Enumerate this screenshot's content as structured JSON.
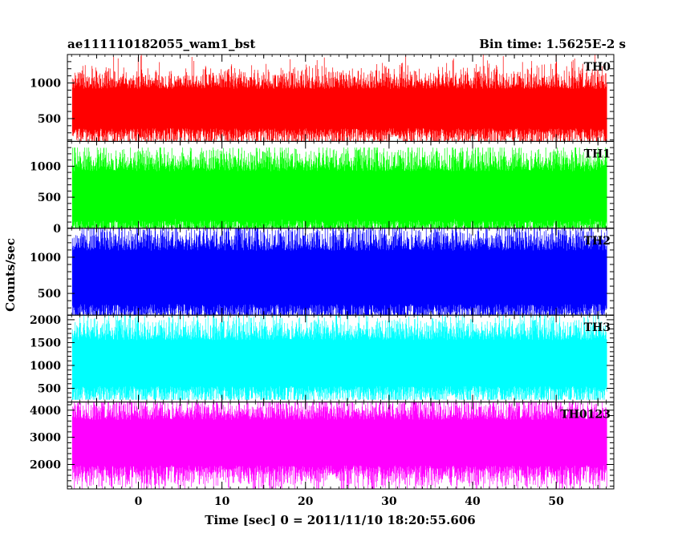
{
  "chart_data": {
    "type": "line",
    "title_left": "ae111110182055_wam1_bst",
    "title_right": "Bin time: 1.5625E-2 s",
    "xlabel": "Time [sec] 0 = 2011/11/10 18:20:55.606",
    "ylabel": "Counts/sec",
    "xlim": [
      -8.5,
      56.9
    ],
    "data_x_range": [
      -7.9,
      56.1
    ],
    "x_ticks": [
      "0",
      "10",
      "20",
      "30",
      "40",
      "50"
    ],
    "x_tick_values": [
      0,
      10,
      20,
      30,
      40,
      50
    ],
    "panels": [
      {
        "name": "TH0",
        "color": "#ff0000",
        "ylim": [
          180,
          1400
        ],
        "y_ticks": [
          "500",
          "1000"
        ],
        "y_tick_values": [
          500,
          1000
        ],
        "mean": 640,
        "typical_low": 340,
        "typical_high": 1000,
        "min": 180,
        "max": 1400
      },
      {
        "name": "TH1",
        "color": "#00ff00",
        "ylim": [
          0,
          1400
        ],
        "y_ticks": [
          "0",
          "500",
          "1000"
        ],
        "y_tick_values": [
          0,
          500,
          1000
        ],
        "mean": 520,
        "typical_low": 150,
        "typical_high": 1100,
        "min": 0,
        "max": 1300
      },
      {
        "name": "TH2",
        "color": "#0000ff",
        "ylim": [
          200,
          1400
        ],
        "y_ticks": [
          "500",
          "1000"
        ],
        "y_tick_values": [
          500,
          1000
        ],
        "mean": 720,
        "typical_low": 320,
        "typical_high": 1200,
        "min": 200,
        "max": 1400
      },
      {
        "name": "TH3",
        "color": "#00ffff",
        "ylim": [
          200,
          2100
        ],
        "y_ticks": [
          "500",
          "1000",
          "1500",
          "2000"
        ],
        "y_tick_values": [
          500,
          1000,
          1500,
          2000
        ],
        "mean": 1050,
        "typical_low": 500,
        "typical_high": 1700,
        "min": 250,
        "max": 2100
      },
      {
        "name": "TH0123",
        "color": "#ff00ff",
        "ylim": [
          1100,
          4300
        ],
        "y_ticks": [
          "2000",
          "3000",
          "4000"
        ],
        "y_tick_values": [
          2000,
          3000,
          4000
        ],
        "mean": 2800,
        "typical_low": 1800,
        "typical_high": 3800,
        "min": 1100,
        "max": 4300
      }
    ],
    "grid": false,
    "legend": "panel labels at top-right of each panel"
  }
}
